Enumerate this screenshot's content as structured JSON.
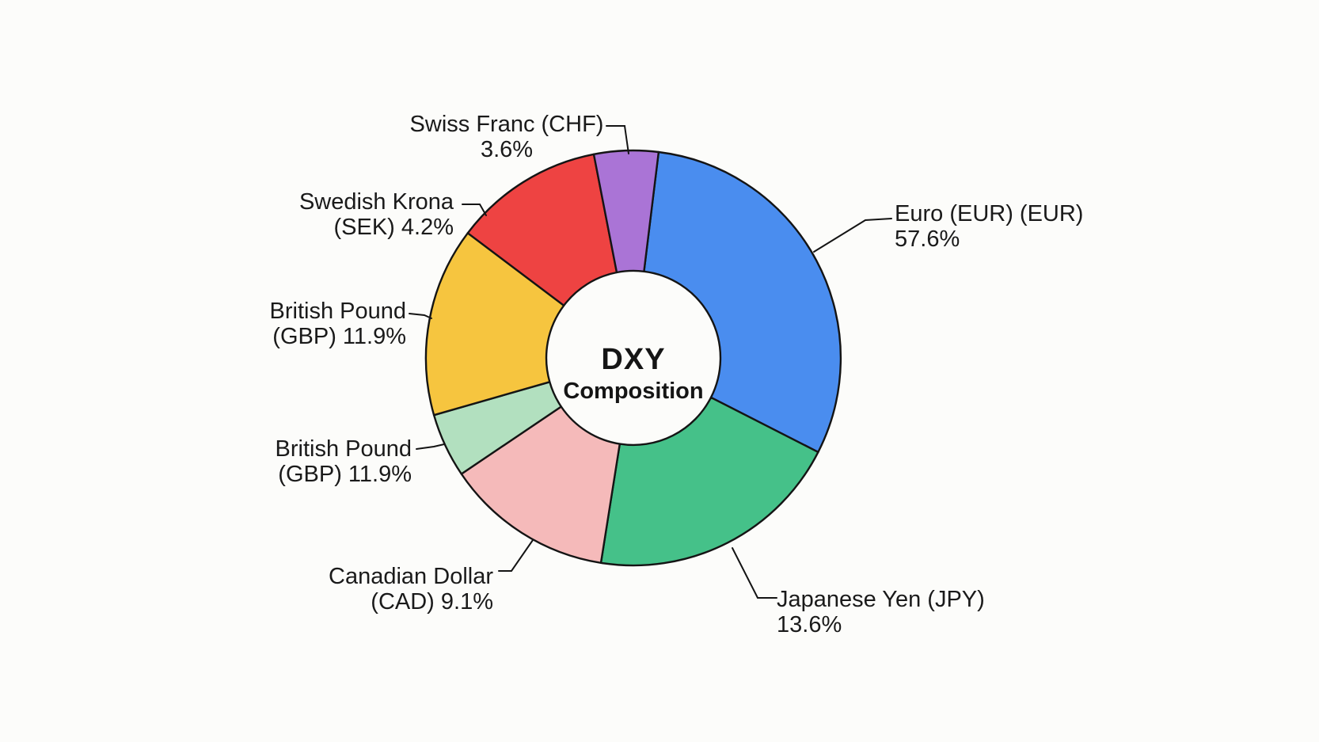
{
  "chart_data": {
    "type": "pie",
    "subtype": "donut",
    "title": "DXY Composition",
    "center_label": {
      "line1": "DXY",
      "line2": "Composition"
    },
    "legend_position": "none",
    "slices": [
      {
        "id": "euro",
        "label": "Euro (EUR) (EUR)",
        "pct_label": "57.6%",
        "value": 57.6,
        "color": "#4a8def",
        "start_angle": 7,
        "end_angle": 117
      },
      {
        "id": "japanese-yen",
        "label": "Japanese Yen (JPY)",
        "pct_label": "13.6%",
        "value": 13.6,
        "color": "#45c189",
        "start_angle": 117,
        "end_angle": 189
      },
      {
        "id": "canadian-dollar",
        "label": "Canadian Dollar",
        "pct_label": "(CAD) 9.1%",
        "value": 9.1,
        "color": "#f5baba",
        "start_angle": 189,
        "end_angle": 236
      },
      {
        "id": "british-pound-2",
        "label": "British Pound",
        "pct_label": "(GBP) 11.9%",
        "value": 11.9,
        "color": "#b2e0bf",
        "start_angle": 236,
        "end_angle": 254
      },
      {
        "id": "british-pound",
        "label": "British Pound",
        "pct_label": "(GBP) 11.9%",
        "value": 11.9,
        "color": "#f6c53f",
        "start_angle": 254,
        "end_angle": 307
      },
      {
        "id": "swedish-krona",
        "label": "Swedish Krona",
        "pct_label": "(SEK) 4.2%",
        "value": 4.2,
        "color": "#ee4342",
        "start_angle": 307,
        "end_angle": 349
      },
      {
        "id": "swiss-franc",
        "label": "Swiss Franc (CHF)",
        "pct_label": "3.6%",
        "value": 3.6,
        "color": "#aa74d6",
        "start_angle": 349,
        "end_angle": 367
      }
    ],
    "outline_color": "#141414",
    "background_color": "#fcfcfa"
  }
}
